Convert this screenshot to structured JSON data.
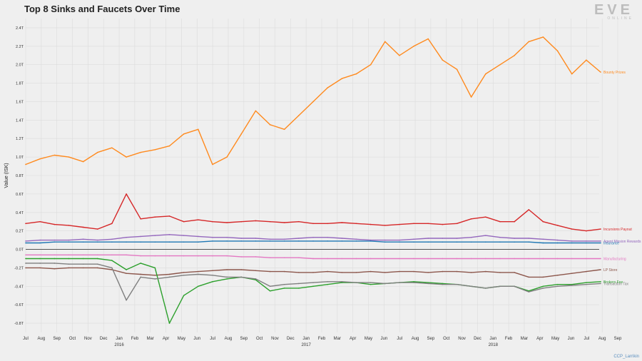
{
  "chart_data": {
    "type": "line",
    "title": "Top 8 Sinks and Faucets Over Time",
    "ylabel": "Value (ISK)",
    "xlabel": "",
    "ylim": [
      -0.9,
      2.5
    ],
    "y_ticks": [
      "2.4T",
      "2.2T",
      "2.0T",
      "1.8T",
      "1.6T",
      "1.4T",
      "1.2T",
      "1.0T",
      "0.8T",
      "0.6T",
      "0.4T",
      "0.2T",
      "0.0T",
      "-0.2T",
      "-0.4T",
      "-0.6T",
      "-0.8T"
    ],
    "x_ticks": [
      {
        "label": "Jul",
        "sub": ""
      },
      {
        "label": "Aug",
        "sub": ""
      },
      {
        "label": "Sep",
        "sub": ""
      },
      {
        "label": "Oct",
        "sub": ""
      },
      {
        "label": "Nov",
        "sub": ""
      },
      {
        "label": "Dec",
        "sub": ""
      },
      {
        "label": "Jan",
        "sub": "2016"
      },
      {
        "label": "Feb",
        "sub": ""
      },
      {
        "label": "Mar",
        "sub": ""
      },
      {
        "label": "Apr",
        "sub": ""
      },
      {
        "label": "May",
        "sub": ""
      },
      {
        "label": "Jun",
        "sub": ""
      },
      {
        "label": "Jul",
        "sub": ""
      },
      {
        "label": "Aug",
        "sub": ""
      },
      {
        "label": "Sep",
        "sub": ""
      },
      {
        "label": "Oct",
        "sub": ""
      },
      {
        "label": "Nov",
        "sub": ""
      },
      {
        "label": "Dec",
        "sub": ""
      },
      {
        "label": "Jan",
        "sub": "2017"
      },
      {
        "label": "Feb",
        "sub": ""
      },
      {
        "label": "Mar",
        "sub": ""
      },
      {
        "label": "Apr",
        "sub": ""
      },
      {
        "label": "May",
        "sub": ""
      },
      {
        "label": "Jun",
        "sub": ""
      },
      {
        "label": "Jul",
        "sub": ""
      },
      {
        "label": "Aug",
        "sub": ""
      },
      {
        "label": "Sep",
        "sub": ""
      },
      {
        "label": "Oct",
        "sub": ""
      },
      {
        "label": "Nov",
        "sub": ""
      },
      {
        "label": "Dec",
        "sub": ""
      },
      {
        "label": "Jan",
        "sub": "2018"
      },
      {
        "label": "Feb",
        "sub": ""
      },
      {
        "label": "Mar",
        "sub": ""
      },
      {
        "label": "Apr",
        "sub": ""
      },
      {
        "label": "May",
        "sub": ""
      },
      {
        "label": "Jun",
        "sub": ""
      },
      {
        "label": "Jul",
        "sub": ""
      },
      {
        "label": "Aug",
        "sub": ""
      },
      {
        "label": "Sep",
        "sub": ""
      }
    ],
    "series": [
      {
        "name": "Bounty Prizes",
        "color": "#ff8a1e",
        "values": [
          0.92,
          0.98,
          1.02,
          1.0,
          0.95,
          1.05,
          1.1,
          1.0,
          1.05,
          1.08,
          1.12,
          1.25,
          1.3,
          0.92,
          1.0,
          1.25,
          1.5,
          1.35,
          1.3,
          1.45,
          1.6,
          1.75,
          1.85,
          1.9,
          2.0,
          2.25,
          2.1,
          2.2,
          2.28,
          2.05,
          1.95,
          1.65,
          1.9,
          2.0,
          2.1,
          2.25,
          2.3,
          2.15,
          1.9,
          2.05,
          1.92
        ]
      },
      {
        "name": "Incursions Payout",
        "color": "#d62728",
        "values": [
          0.28,
          0.3,
          0.27,
          0.26,
          0.24,
          0.22,
          0.28,
          0.6,
          0.33,
          0.35,
          0.36,
          0.3,
          0.32,
          0.3,
          0.29,
          0.3,
          0.31,
          0.3,
          0.29,
          0.3,
          0.28,
          0.28,
          0.29,
          0.28,
          0.27,
          0.26,
          0.27,
          0.28,
          0.28,
          0.27,
          0.28,
          0.33,
          0.35,
          0.3,
          0.3,
          0.43,
          0.3,
          0.26,
          0.22,
          0.2,
          0.22
        ]
      },
      {
        "name": "Agent Mission Rewards",
        "color": "#9467bd",
        "values": [
          0.09,
          0.1,
          0.1,
          0.1,
          0.11,
          0.1,
          0.11,
          0.13,
          0.14,
          0.15,
          0.16,
          0.15,
          0.14,
          0.13,
          0.13,
          0.12,
          0.12,
          0.11,
          0.11,
          0.12,
          0.13,
          0.13,
          0.12,
          0.11,
          0.1,
          0.1,
          0.1,
          0.11,
          0.12,
          0.12,
          0.12,
          0.13,
          0.15,
          0.13,
          0.12,
          0.12,
          0.11,
          0.1,
          0.09,
          0.09,
          0.09
        ]
      },
      {
        "name": "Insurance",
        "color": "#1f77b4",
        "values": [
          0.07,
          0.07,
          0.08,
          0.08,
          0.08,
          0.08,
          0.08,
          0.08,
          0.08,
          0.08,
          0.08,
          0.08,
          0.08,
          0.09,
          0.09,
          0.09,
          0.09,
          0.09,
          0.09,
          0.09,
          0.09,
          0.09,
          0.09,
          0.09,
          0.09,
          0.08,
          0.08,
          0.08,
          0.08,
          0.08,
          0.08,
          0.08,
          0.08,
          0.08,
          0.08,
          0.08,
          0.07,
          0.07,
          0.07,
          0.07,
          0.07
        ]
      },
      {
        "name": "Manufacturing",
        "color": "#e377c2",
        "values": [
          -0.06,
          -0.06,
          -0.06,
          -0.06,
          -0.06,
          -0.06,
          -0.06,
          -0.06,
          -0.07,
          -0.07,
          -0.07,
          -0.07,
          -0.07,
          -0.07,
          -0.07,
          -0.08,
          -0.08,
          -0.09,
          -0.09,
          -0.09,
          -0.1,
          -0.1,
          -0.1,
          -0.1,
          -0.1,
          -0.1,
          -0.1,
          -0.1,
          -0.1,
          -0.1,
          -0.1,
          -0.1,
          -0.1,
          -0.1,
          -0.1,
          -0.1,
          -0.1,
          -0.1,
          -0.1,
          -0.1,
          -0.1
        ]
      },
      {
        "name": "LP Store",
        "color": "#8c564b",
        "values": [
          -0.2,
          -0.2,
          -0.21,
          -0.2,
          -0.2,
          -0.2,
          -0.22,
          -0.26,
          -0.27,
          -0.28,
          -0.27,
          -0.25,
          -0.24,
          -0.23,
          -0.22,
          -0.22,
          -0.23,
          -0.24,
          -0.24,
          -0.25,
          -0.25,
          -0.24,
          -0.25,
          -0.25,
          -0.24,
          -0.25,
          -0.24,
          -0.24,
          -0.25,
          -0.24,
          -0.24,
          -0.25,
          -0.24,
          -0.25,
          -0.25,
          -0.3,
          -0.3,
          -0.28,
          -0.26,
          -0.24,
          -0.22
        ]
      },
      {
        "name": "Brokers Fee",
        "color": "#2ca02c",
        "values": [
          -0.1,
          -0.1,
          -0.1,
          -0.1,
          -0.1,
          -0.1,
          -0.12,
          -0.22,
          -0.15,
          -0.2,
          -0.8,
          -0.5,
          -0.4,
          -0.35,
          -0.32,
          -0.3,
          -0.33,
          -0.45,
          -0.42,
          -0.42,
          -0.4,
          -0.38,
          -0.36,
          -0.36,
          -0.38,
          -0.37,
          -0.36,
          -0.35,
          -0.36,
          -0.37,
          -0.38,
          -0.4,
          -0.42,
          -0.4,
          -0.4,
          -0.45,
          -0.4,
          -0.38,
          -0.38,
          -0.36,
          -0.35
        ]
      },
      {
        "name": "Transaction Tax",
        "color": "#7f7f7f",
        "values": [
          -0.15,
          -0.15,
          -0.15,
          -0.16,
          -0.16,
          -0.16,
          -0.2,
          -0.55,
          -0.3,
          -0.32,
          -0.3,
          -0.28,
          -0.27,
          -0.28,
          -0.3,
          -0.3,
          -0.32,
          -0.4,
          -0.38,
          -0.37,
          -0.36,
          -0.35,
          -0.35,
          -0.36,
          -0.36,
          -0.37,
          -0.36,
          -0.36,
          -0.37,
          -0.38,
          -0.38,
          -0.4,
          -0.42,
          -0.4,
          -0.4,
          -0.46,
          -0.42,
          -0.4,
          -0.39,
          -0.38,
          -0.37
        ]
      }
    ],
    "legend": "end-of-line labels",
    "grid": true
  },
  "logo": {
    "top": "EVE",
    "bottom": "ONLINE"
  },
  "credit": "CCP_Larrikin"
}
